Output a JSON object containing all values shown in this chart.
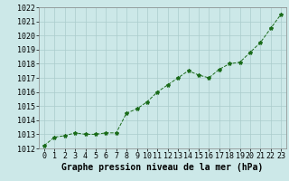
{
  "x": [
    0,
    1,
    2,
    3,
    4,
    5,
    6,
    7,
    8,
    9,
    10,
    11,
    12,
    13,
    14,
    15,
    16,
    17,
    18,
    19,
    20,
    21,
    22,
    23
  ],
  "y": [
    1012.2,
    1012.8,
    1012.9,
    1013.1,
    1013.0,
    1013.0,
    1013.1,
    1013.1,
    1014.5,
    1014.8,
    1015.3,
    1016.0,
    1016.5,
    1017.0,
    1017.5,
    1017.2,
    1017.0,
    1017.6,
    1018.0,
    1018.1,
    1018.8,
    1019.5,
    1020.5,
    1021.5
  ],
  "ylim": [
    1012,
    1022
  ],
  "yticks": [
    1012,
    1013,
    1014,
    1015,
    1016,
    1017,
    1018,
    1019,
    1020,
    1021,
    1022
  ],
  "xticks": [
    0,
    1,
    2,
    3,
    4,
    5,
    6,
    7,
    8,
    9,
    10,
    11,
    12,
    13,
    14,
    15,
    16,
    17,
    18,
    19,
    20,
    21,
    22,
    23
  ],
  "line_color": "#1a6b1a",
  "marker": "*",
  "marker_size": 3,
  "bg_color": "#cce8e8",
  "grid_color": "#aacccc",
  "xlabel": "Graphe pression niveau de la mer (hPa)",
  "xlabel_fontsize": 7,
  "tick_fontsize": 6,
  "title": ""
}
